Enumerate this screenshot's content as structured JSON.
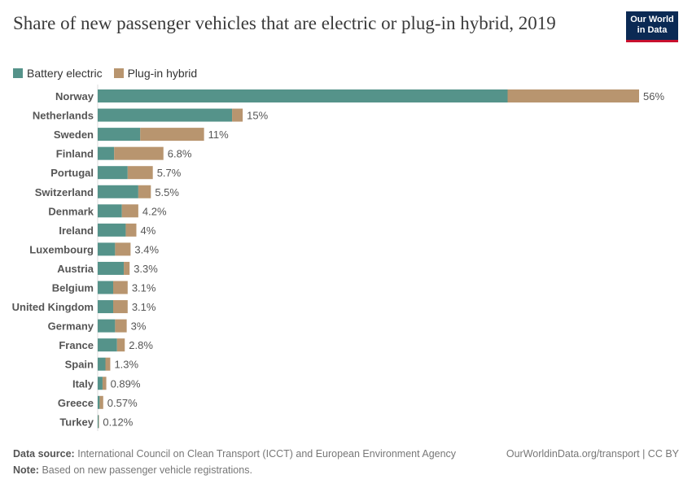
{
  "title": "Share of new passenger vehicles that are electric or plug-in hybrid, 2019",
  "logo": "Our World in Data",
  "colors": {
    "battery": "#55938a",
    "plugin": "#b8956f"
  },
  "chart_data": {
    "type": "bar",
    "orientation": "horizontal",
    "stacked": true,
    "categories": [
      "Norway",
      "Netherlands",
      "Sweden",
      "Finland",
      "Portugal",
      "Switzerland",
      "Denmark",
      "Ireland",
      "Luxembourg",
      "Austria",
      "Belgium",
      "United Kingdom",
      "Germany",
      "France",
      "Spain",
      "Italy",
      "Greece",
      "Turkey"
    ],
    "series": [
      {
        "name": "Battery electric",
        "values": [
          42.4,
          13.9,
          4.4,
          1.7,
          3.1,
          4.2,
          2.5,
          2.9,
          1.8,
          2.7,
          1.6,
          1.6,
          1.8,
          2.0,
          0.8,
          0.5,
          0.2,
          0.1
        ]
      },
      {
        "name": "Plug-in hybrid",
        "values": [
          13.6,
          1.1,
          6.6,
          5.1,
          2.6,
          1.3,
          1.7,
          1.1,
          1.6,
          0.6,
          1.5,
          1.5,
          1.2,
          0.8,
          0.5,
          0.39,
          0.37,
          0.02
        ]
      }
    ],
    "total_labels": [
      "56%",
      "15%",
      "11%",
      "6.8%",
      "5.7%",
      "5.5%",
      "4.2%",
      "4%",
      "3.4%",
      "3.3%",
      "3.1%",
      "3.1%",
      "3%",
      "2.8%",
      "1.3%",
      "0.89%",
      "0.57%",
      "0.12%"
    ],
    "xlim": [
      0,
      56
    ],
    "legend": "top-left"
  },
  "footer": {
    "source_label": "Data source:",
    "source": "International Council on Clean Transport (ICCT) and European Environment Agency",
    "url": "OurWorldinData.org/transport | CC BY",
    "note_label": "Note:",
    "note": "Based on new passenger vehicle registrations."
  }
}
